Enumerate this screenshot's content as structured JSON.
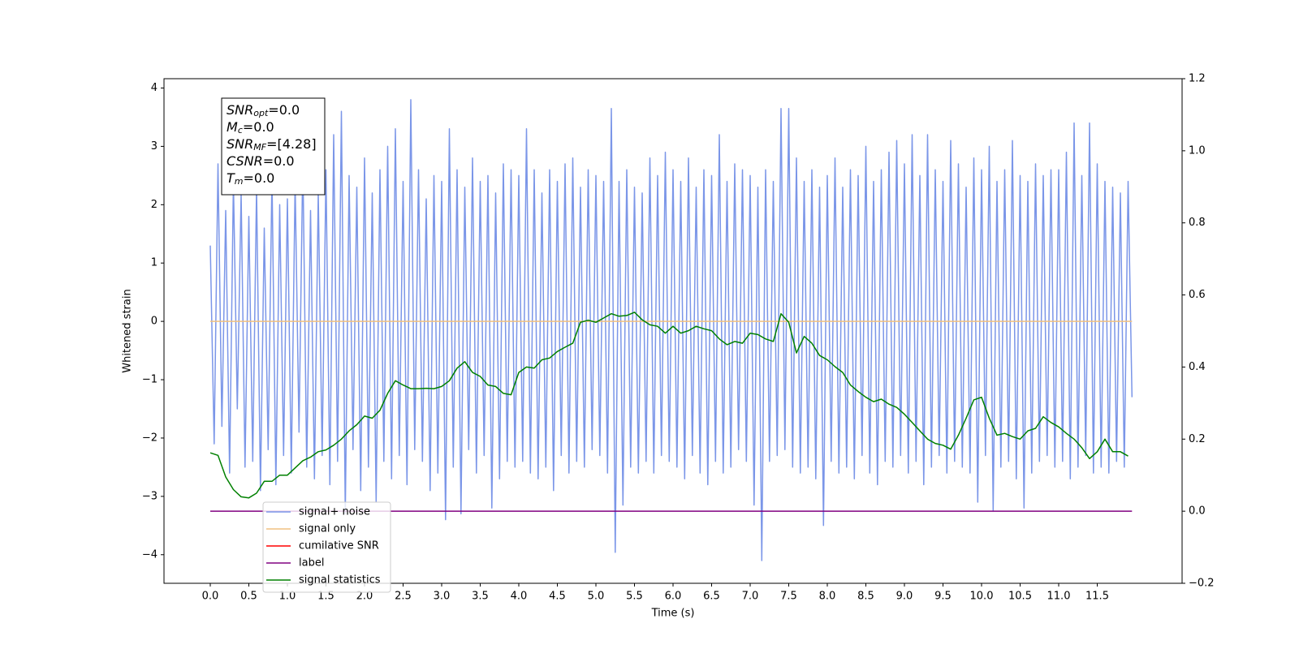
{
  "chart_data": {
    "type": "line",
    "xlabel": "Time (s)",
    "ylabel": "Whitened strain",
    "xlim": [
      -0.6,
      12.6
    ],
    "ylim": [
      -4.49,
      4.16
    ],
    "y2lim": [
      -0.2,
      1.2
    ],
    "xticks": [
      {
        "value": 0,
        "label": "0.0"
      },
      0.5,
      {
        "value": 1,
        "label": "1.0"
      },
      1.5,
      {
        "value": 2,
        "label": "2.0"
      },
      2.5,
      {
        "value": 3,
        "label": "3.0"
      },
      3.5,
      {
        "value": 4,
        "label": "4.0"
      },
      4.5,
      {
        "value": 5,
        "label": "5.0"
      },
      5.5,
      {
        "value": 6,
        "label": "6.0"
      },
      6.5,
      {
        "value": 7,
        "label": "7.0"
      },
      7.5,
      {
        "value": 8,
        "label": "8.0"
      },
      8.5,
      {
        "value": 9,
        "label": "9.0"
      },
      9.5,
      {
        "value": 10,
        "label": "10.0"
      },
      10.5,
      {
        "value": 11,
        "label": "11.0"
      },
      11.5
    ],
    "yticks": [
      {
        "value": -4,
        "label": "−4"
      },
      {
        "value": -3,
        "label": "−3"
      },
      {
        "value": -2,
        "label": "−2"
      },
      {
        "value": -1,
        "label": "−1"
      },
      0,
      1,
      2,
      3,
      4
    ],
    "y2ticks": [
      {
        "value": -0.2,
        "label": "−0.2"
      },
      {
        "value": 0,
        "label": "0.0"
      },
      0.2,
      0.4,
      0.6,
      0.8,
      {
        "value": 1,
        "label": "1.0"
      },
      1.2
    ],
    "legend": "lower left",
    "annotation": [
      {
        "main": "SNR",
        "sub": "opt",
        "rest": "=0.0"
      },
      {
        "main": "M",
        "sub": "c",
        "rest": "=0.0"
      },
      {
        "main": "SNR",
        "sub": "MF",
        "rest": "=[4.28]"
      },
      {
        "main": "CSNR",
        "sub": "",
        "rest": "=0.0"
      },
      {
        "main": "T",
        "sub": "m",
        "rest": "=0.0"
      }
    ],
    "series": [
      {
        "name": "signal+ noise",
        "color": "#7b96e8",
        "x": [
          0,
          0.05,
          0.1,
          0.15,
          0.2,
          0.25,
          0.3,
          0.35,
          0.4,
          0.45,
          0.5,
          0.55,
          0.6,
          0.65,
          0.7,
          0.75,
          0.8,
          0.85,
          0.9,
          0.95,
          1,
          1.05,
          1.1,
          1.15,
          1.2,
          1.25,
          1.3,
          1.35,
          1.4,
          1.45,
          1.5,
          1.55,
          1.6,
          1.65,
          1.7,
          1.75,
          1.8,
          1.85,
          1.9,
          1.95,
          2,
          2.05,
          2.1,
          2.15,
          2.2,
          2.25,
          2.3,
          2.35,
          2.4,
          2.45,
          2.5,
          2.55,
          2.6,
          2.65,
          2.7,
          2.75,
          2.8,
          2.85,
          2.9,
          2.95,
          3,
          3.05,
          3.1,
          3.15,
          3.2,
          3.25,
          3.3,
          3.35,
          3.4,
          3.45,
          3.5,
          3.55,
          3.6,
          3.65,
          3.7,
          3.75,
          3.8,
          3.85,
          3.9,
          3.95,
          4,
          4.05,
          4.1,
          4.15,
          4.2,
          4.25,
          4.3,
          4.35,
          4.4,
          4.45,
          4.5,
          4.55,
          4.6,
          4.65,
          4.7,
          4.75,
          4.8,
          4.85,
          4.9,
          4.95,
          5,
          5.05,
          5.1,
          5.15,
          5.2,
          5.25,
          5.3,
          5.35,
          5.4,
          5.45,
          5.5,
          5.55,
          5.6,
          5.65,
          5.7,
          5.75,
          5.8,
          5.85,
          5.9,
          5.95,
          6,
          6.05,
          6.1,
          6.15,
          6.2,
          6.25,
          6.3,
          6.35,
          6.4,
          6.45,
          6.5,
          6.55,
          6.6,
          6.65,
          6.7,
          6.75,
          6.8,
          6.85,
          6.9,
          6.95,
          7,
          7.05,
          7.1,
          7.15,
          7.2,
          7.25,
          7.3,
          7.35,
          7.4,
          7.45,
          7.5,
          7.55,
          7.6,
          7.65,
          7.7,
          7.75,
          7.8,
          7.85,
          7.9,
          7.95,
          8,
          8.05,
          8.1,
          8.15,
          8.2,
          8.25,
          8.3,
          8.35,
          8.4,
          8.45,
          8.5,
          8.55,
          8.6,
          8.65,
          8.7,
          8.75,
          8.8,
          8.85,
          8.9,
          8.95,
          9,
          9.05,
          9.1,
          9.15,
          9.2,
          9.25,
          9.3,
          9.35,
          9.4,
          9.45,
          9.5,
          9.55,
          9.6,
          9.65,
          9.7,
          9.75,
          9.8,
          9.85,
          9.9,
          9.95,
          10,
          10.05,
          10.1,
          10.15,
          10.2,
          10.25,
          10.3,
          10.35,
          10.4,
          10.45,
          10.5,
          10.55,
          10.6,
          10.65,
          10.7,
          10.75,
          10.8,
          10.85,
          10.9,
          10.95,
          11,
          11.05,
          11.1,
          11.15,
          11.2,
          11.25,
          11.3,
          11.35,
          11.4,
          11.45,
          11.5,
          11.55,
          11.6,
          11.65,
          11.7,
          11.75,
          11.8,
          11.85,
          11.9,
          11.95
        ],
        "values": [
          1.3,
          -2.1,
          2.7,
          -1.8,
          1.9,
          -2.6,
          2.4,
          -1.5,
          2.2,
          -2.5,
          1.8,
          -2.4,
          2.3,
          -2.9,
          1.6,
          -2.2,
          2.5,
          -2.8,
          2.0,
          -2.3,
          2.1,
          -2.6,
          2.4,
          -1.9,
          2.8,
          -2.5,
          1.9,
          -2.7,
          2.2,
          -2.3,
          2.6,
          -2.8,
          3.2,
          -2.4,
          3.6,
          -3.3,
          2.5,
          -2.2,
          2.3,
          -2.9,
          2.8,
          -2.5,
          2.2,
          -3.1,
          2.6,
          -2.4,
          3.0,
          -2.7,
          3.3,
          -2.3,
          2.4,
          -2.8,
          3.8,
          -2.2,
          2.6,
          -2.4,
          2.1,
          -2.9,
          2.5,
          -2.6,
          2.4,
          -3.4,
          3.3,
          -2.5,
          2.6,
          -3.3,
          2.3,
          -2.2,
          2.8,
          -2.6,
          2.4,
          -2.3,
          2.5,
          -3.2,
          2.2,
          -2.7,
          2.7,
          -2.4,
          2.6,
          -2.5,
          2.5,
          -2.4,
          3.3,
          -2.6,
          2.6,
          -2.7,
          2.2,
          -2.5,
          2.6,
          -2.9,
          2.4,
          -2.3,
          2.7,
          -2.6,
          2.8,
          -2.4,
          2.3,
          -2.5,
          2.6,
          -2.2,
          2.5,
          -2.3,
          2.4,
          -2.6,
          3.65,
          -3.96,
          2.4,
          -3.15,
          2.6,
          -2.5,
          2.3,
          -2.6,
          2.2,
          -2.4,
          2.8,
          -2.6,
          2.5,
          -2.3,
          2.9,
          -2.4,
          2.6,
          -2.5,
          2.4,
          -2.7,
          2.8,
          -2.3,
          2.3,
          -2.6,
          2.6,
          -2.8,
          2.5,
          -2.4,
          3.2,
          -2.6,
          2.4,
          -2.5,
          2.7,
          -2.2,
          2.6,
          -2.4,
          2.5,
          -3.15,
          2.3,
          -4.1,
          2.6,
          -2.4,
          2.4,
          -2.3,
          3.65,
          -2.2,
          3.65,
          -2.5,
          2.8,
          -2.6,
          2.4,
          -2.5,
          2.6,
          -2.7,
          2.3,
          -3.5,
          2.5,
          -2.4,
          2.8,
          -2.6,
          2.3,
          -2.5,
          2.6,
          -2.7,
          2.5,
          -2.3,
          3.0,
          -2.6,
          2.4,
          -2.8,
          2.6,
          -2.4,
          2.9,
          -2.5,
          3.1,
          -2.3,
          2.7,
          -2.6,
          3.2,
          -2.4,
          2.5,
          -2.8,
          3.2,
          -2.5,
          2.6,
          -2.3,
          2.4,
          -2.6,
          3.1,
          -2.4,
          2.7,
          -2.5,
          2.3,
          -2.6,
          2.8,
          -3.1,
          2.6,
          -2.3,
          3.0,
          -3.25,
          2.4,
          -2.5,
          2.6,
          -2.4,
          3.1,
          -2.7,
          2.5,
          -3.2,
          2.4,
          -2.6,
          2.7,
          -2.4,
          2.5,
          -2.3,
          2.6,
          -2.5,
          2.6,
          -2.4,
          2.9,
          -2.7,
          3.4,
          -2.5,
          2.5,
          -2.3,
          3.4,
          -2.6,
          2.7,
          -2.5,
          2.4,
          -2.6,
          2.3,
          -2.4,
          2.2,
          -2.5,
          2.4,
          -1.3
        ]
      },
      {
        "name": "signal only",
        "color": "#f0c080",
        "x": [
          0,
          11.95
        ],
        "values": [
          0,
          0
        ]
      },
      {
        "name": "cumilative SNR",
        "color": "#ff0000",
        "axis": "y2",
        "x": [],
        "values": []
      },
      {
        "name": "label",
        "color": "#800080",
        "axis": "y2",
        "x": [
          0,
          11.95
        ],
        "values": [
          0,
          0
        ]
      },
      {
        "name": "signal statistics",
        "color": "#008000",
        "axis": "y2",
        "x": [
          0,
          0.1,
          0.2,
          0.3,
          0.4,
          0.5,
          0.6,
          0.7,
          0.8,
          0.9,
          1,
          1.1,
          1.2,
          1.3,
          1.4,
          1.5,
          1.6,
          1.7,
          1.8,
          1.9,
          2,
          2.1,
          2.2,
          2.3,
          2.4,
          2.5,
          2.6,
          2.7,
          2.8,
          2.9,
          3,
          3.1,
          3.2,
          3.3,
          3.4,
          3.5,
          3.6,
          3.7,
          3.8,
          3.9,
          4,
          4.1,
          4.2,
          4.3,
          4.4,
          4.5,
          4.6,
          4.7,
          4.8,
          4.9,
          5,
          5.1,
          5.2,
          5.3,
          5.4,
          5.5,
          5.6,
          5.7,
          5.8,
          5.9,
          6,
          6.1,
          6.2,
          6.3,
          6.4,
          6.5,
          6.6,
          6.7,
          6.8,
          6.9,
          7,
          7.1,
          7.2,
          7.3,
          7.4,
          7.5,
          7.6,
          7.7,
          7.8,
          7.9,
          8,
          8.1,
          8.2,
          8.3,
          8.4,
          8.5,
          8.6,
          8.7,
          8.8,
          8.9,
          9,
          9.1,
          9.2,
          9.3,
          9.4,
          9.5,
          9.6,
          9.7,
          9.8,
          9.9,
          10,
          10.1,
          10.2,
          10.3,
          10.4,
          10.5,
          10.6,
          10.7,
          10.8,
          10.9,
          11,
          11.1,
          11.2,
          11.3,
          11.4,
          11.5,
          11.6,
          11.7,
          11.8,
          11.9
        ],
        "values": [
          0.162,
          0.155,
          0.095,
          0.06,
          0.04,
          0.037,
          0.05,
          0.083,
          0.083,
          0.1,
          0.1,
          0.12,
          0.14,
          0.15,
          0.165,
          0.17,
          0.183,
          0.2,
          0.223,
          0.24,
          0.264,
          0.258,
          0.28,
          0.327,
          0.362,
          0.35,
          0.34,
          0.34,
          0.341,
          0.34,
          0.346,
          0.362,
          0.397,
          0.415,
          0.385,
          0.374,
          0.35,
          0.346,
          0.327,
          0.323,
          0.385,
          0.4,
          0.397,
          0.42,
          0.425,
          0.443,
          0.455,
          0.466,
          0.524,
          0.53,
          0.524,
          0.536,
          0.548,
          0.541,
          0.543,
          0.552,
          0.531,
          0.517,
          0.513,
          0.494,
          0.513,
          0.494,
          0.501,
          0.513,
          0.506,
          0.501,
          0.478,
          0.462,
          0.471,
          0.466,
          0.494,
          0.49,
          0.478,
          0.471,
          0.548,
          0.524,
          0.439,
          0.485,
          0.466,
          0.432,
          0.42,
          0.401,
          0.385,
          0.35,
          0.332,
          0.316,
          0.304,
          0.311,
          0.297,
          0.288,
          0.269,
          0.246,
          0.223,
          0.2,
          0.188,
          0.183,
          0.172,
          0.211,
          0.258,
          0.309,
          0.316,
          0.258,
          0.211,
          0.216,
          0.207,
          0.2,
          0.223,
          0.23,
          0.262,
          0.246,
          0.234,
          0.216,
          0.2,
          0.176,
          0.146,
          0.165,
          0.2,
          0.165,
          0.165,
          0.153
        ]
      }
    ]
  }
}
